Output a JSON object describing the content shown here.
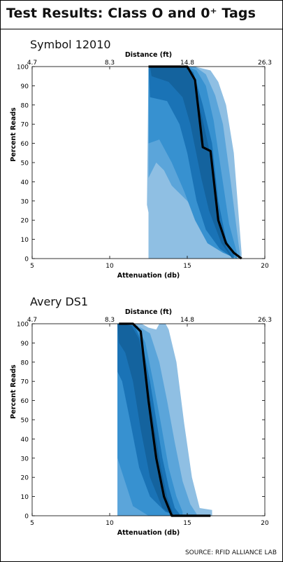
{
  "header": {
    "title": "Test Results: Class O and 0⁺ Tags"
  },
  "source": "SOURCE: RFID ALLIANCE LAB",
  "colors": {
    "outer": "#8fbfe3",
    "band1": "#5ba5da",
    "band2": "#3791d0",
    "band3": "#1a73b6",
    "inner": "#14639e",
    "median": "#000000"
  },
  "chart_data": [
    {
      "type": "area",
      "title": "Symbol 12010",
      "xlabel": "Attenuation (db)",
      "ylabel": "Percent Reads",
      "x2label": "Distance (ft)",
      "xlim": [
        5,
        20
      ],
      "ylim": [
        0,
        100
      ],
      "xticks": [
        "5",
        "10",
        "15",
        "20"
      ],
      "yticks": [
        "0",
        "10",
        "20",
        "30",
        "40",
        "50",
        "60",
        "70",
        "80",
        "90",
        "100"
      ],
      "x2ticks": [
        "4.7",
        "8.3",
        "14.8",
        "26.3"
      ],
      "x2tick_positions": [
        5,
        10,
        15,
        20
      ],
      "grid": false,
      "bands": [
        {
          "level": "outer",
          "upper": [
            [
              12.4,
              28
            ],
            [
              12.5,
              99
            ],
            [
              14.5,
              100
            ],
            [
              15,
              103
            ],
            [
              15.5,
              100
            ],
            [
              16,
              99
            ],
            [
              16.5,
              98
            ],
            [
              17,
              92
            ],
            [
              17.5,
              80
            ],
            [
              18,
              55
            ],
            [
              18.5,
              3
            ]
          ],
          "lower": [
            [
              18.5,
              0
            ],
            [
              12.5,
              0
            ],
            [
              12.5,
              24
            ]
          ]
        },
        {
          "level": "band1",
          "upper": [
            [
              12.5,
              98
            ],
            [
              14.5,
              100
            ],
            [
              15.5,
              100
            ],
            [
              16.2,
              96
            ],
            [
              16.8,
              85
            ],
            [
              17.3,
              70
            ],
            [
              17.8,
              40
            ],
            [
              18.3,
              8
            ],
            [
              18.4,
              2
            ]
          ],
          "lower": [
            [
              18.4,
              0
            ],
            [
              17.8,
              8
            ],
            [
              17,
              14
            ],
            [
              16,
              18
            ],
            [
              15,
              30
            ],
            [
              14,
              38
            ],
            [
              13.5,
              46
            ],
            [
              13,
              50
            ],
            [
              12.5,
              42
            ]
          ]
        },
        {
          "level": "band2",
          "upper": [
            [
              12.5,
              99
            ],
            [
              15,
              100
            ],
            [
              15.6,
              98
            ],
            [
              16.2,
              90
            ],
            [
              16.7,
              72
            ],
            [
              17.2,
              45
            ],
            [
              17.7,
              18
            ],
            [
              18.2,
              3
            ]
          ],
          "lower": [
            [
              18.2,
              0
            ],
            [
              17.3,
              3
            ],
            [
              16.3,
              8
            ],
            [
              15.5,
              20
            ],
            [
              14.8,
              35
            ],
            [
              14,
              50
            ],
            [
              13.2,
              62
            ],
            [
              12.5,
              60
            ]
          ]
        },
        {
          "level": "band3",
          "upper": [
            [
              12.5,
              100
            ],
            [
              15,
              100
            ],
            [
              15.4,
              97
            ],
            [
              16,
              80
            ],
            [
              16.6,
              60
            ],
            [
              17,
              30
            ],
            [
              17.5,
              10
            ],
            [
              18,
              2
            ]
          ],
          "lower": [
            [
              18,
              0
            ],
            [
              17.1,
              5
            ],
            [
              16.2,
              15
            ],
            [
              15.6,
              30
            ],
            [
              15,
              55
            ],
            [
              14.5,
              70
            ],
            [
              13.7,
              82
            ],
            [
              12.6,
              84
            ]
          ]
        },
        {
          "level": "inner",
          "upper": [
            [
              12.6,
              100
            ],
            [
              14.9,
              100
            ],
            [
              15.4,
              93
            ],
            [
              16,
              72
            ],
            [
              16.6,
              50
            ],
            [
              17,
              20
            ],
            [
              17.5,
              6
            ],
            [
              17.9,
              1
            ]
          ],
          "lower": [
            [
              17.9,
              0
            ],
            [
              17.2,
              8
            ],
            [
              16.4,
              25
            ],
            [
              15.9,
              42
            ],
            [
              15.2,
              70
            ],
            [
              14.7,
              84
            ],
            [
              13.8,
              92
            ],
            [
              12.7,
              95
            ]
          ]
        }
      ],
      "series": [
        {
          "values": [
            [
              12.5,
              100
            ],
            [
              14.5,
              100
            ],
            [
              15,
              100
            ],
            [
              15.5,
              93
            ],
            [
              16,
              58
            ],
            [
              16.5,
              56
            ],
            [
              17,
              20
            ],
            [
              17.5,
              8
            ],
            [
              18,
              3
            ],
            [
              18.5,
              0
            ]
          ]
        }
      ]
    },
    {
      "type": "area",
      "title": "Avery DS1",
      "xlabel": "Attenuation (db)",
      "ylabel": "Percent Reads",
      "x2label": "Distance (ft)",
      "xlim": [
        5,
        20
      ],
      "ylim": [
        0,
        100
      ],
      "xticks": [
        "5",
        "10",
        "15",
        "20"
      ],
      "yticks": [
        "0",
        "10",
        "20",
        "30",
        "40",
        "50",
        "60",
        "70",
        "80",
        "90",
        "100"
      ],
      "x2ticks": [
        "4.7",
        "8.3",
        "14.8",
        "26.3"
      ],
      "x2tick_positions": [
        5,
        10,
        15,
        20
      ],
      "grid": false,
      "bands": [
        {
          "level": "outer",
          "upper": [
            [
              10.5,
              102
            ],
            [
              11.2,
              104
            ],
            [
              12.5,
              98
            ],
            [
              13,
              97
            ],
            [
              13.4,
              103
            ],
            [
              13.8,
              97
            ],
            [
              14.3,
              80
            ],
            [
              14.8,
              48
            ],
            [
              15.3,
              20
            ],
            [
              15.8,
              4
            ],
            [
              16.6,
              3
            ]
          ],
          "lower": [
            [
              16.6,
              0
            ],
            [
              10.5,
              0
            ]
          ]
        },
        {
          "level": "band1",
          "upper": [
            [
              10.5,
              100
            ],
            [
              12,
              98
            ],
            [
              12.6,
              95
            ],
            [
              13.2,
              80
            ],
            [
              13.7,
              60
            ],
            [
              14.2,
              38
            ],
            [
              14.7,
              18
            ],
            [
              15.2,
              6
            ],
            [
              15.6,
              1
            ]
          ],
          "lower": [
            [
              15.6,
              0
            ],
            [
              10.5,
              0
            ]
          ]
        },
        {
          "level": "band2",
          "upper": [
            [
              10.5,
              100
            ],
            [
              11.8,
              99
            ],
            [
              12.3,
              90
            ],
            [
              12.8,
              70
            ],
            [
              13.3,
              48
            ],
            [
              13.8,
              25
            ],
            [
              14.3,
              10
            ],
            [
              14.7,
              2
            ]
          ],
          "lower": [
            [
              14.7,
              0
            ],
            [
              12.5,
              0
            ],
            [
              11.5,
              5
            ],
            [
              10.9,
              20
            ],
            [
              10.5,
              30
            ]
          ]
        },
        {
          "level": "band3",
          "upper": [
            [
              10.5,
              100
            ],
            [
              11.6,
              99
            ],
            [
              12.1,
              90
            ],
            [
              12.6,
              70
            ],
            [
              13,
              50
            ],
            [
              13.4,
              30
            ],
            [
              13.8,
              15
            ],
            [
              14.2,
              4
            ],
            [
              14.5,
              1
            ]
          ],
          "lower": [
            [
              14.5,
              0
            ],
            [
              13.6,
              2
            ],
            [
              12.6,
              10
            ],
            [
              11.9,
              25
            ],
            [
              11.3,
              50
            ],
            [
              10.8,
              70
            ],
            [
              10.5,
              75
            ]
          ]
        },
        {
          "level": "inner",
          "upper": [
            [
              10.5,
              100
            ],
            [
              11.4,
              99
            ],
            [
              11.9,
              92
            ],
            [
              12.4,
              72
            ],
            [
              12.9,
              45
            ],
            [
              13.3,
              25
            ],
            [
              13.7,
              10
            ],
            [
              14.1,
              1
            ]
          ],
          "lower": [
            [
              14.1,
              0
            ],
            [
              13.4,
              4
            ],
            [
              12.6,
              20
            ],
            [
              12,
              45
            ],
            [
              11.5,
              70
            ],
            [
              11,
              85
            ],
            [
              10.6,
              90
            ]
          ]
        }
      ],
      "series": [
        {
          "values": [
            [
              10.6,
              100
            ],
            [
              11.5,
              100
            ],
            [
              12,
              96
            ],
            [
              12.5,
              60
            ],
            [
              13,
              30
            ],
            [
              13.5,
              10
            ],
            [
              14,
              0
            ],
            [
              16.5,
              0
            ]
          ]
        }
      ]
    }
  ]
}
